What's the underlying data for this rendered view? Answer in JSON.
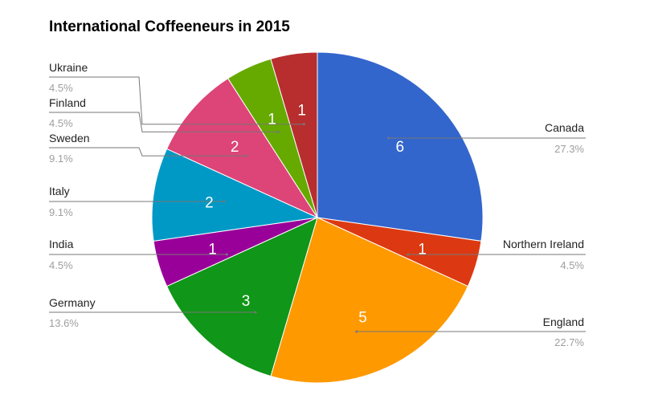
{
  "chart_data": {
    "type": "pie",
    "title": "International Coffeeneurs in 2015",
    "slices": [
      {
        "label": "Canada",
        "value": 6,
        "percent": "27.3%",
        "color": "#3366cc"
      },
      {
        "label": "Northern Ireland",
        "value": 1,
        "percent": "4.5%",
        "color": "#dc3912"
      },
      {
        "label": "England",
        "value": 5,
        "percent": "22.7%",
        "color": "#ff9900"
      },
      {
        "label": "Germany",
        "value": 3,
        "percent": "13.6%",
        "color": "#109618"
      },
      {
        "label": "India",
        "value": 1,
        "percent": "4.5%",
        "color": "#990099"
      },
      {
        "label": "Italy",
        "value": 2,
        "percent": "9.1%",
        "color": "#0099c6"
      },
      {
        "label": "Sweden",
        "value": 2,
        "percent": "9.1%",
        "color": "#dd4477"
      },
      {
        "label": "Finland",
        "value": 1,
        "percent": "4.5%",
        "color": "#66aa00"
      },
      {
        "label": "Ukraine",
        "value": 1,
        "percent": "4.5%",
        "color": "#b82e2e"
      }
    ]
  }
}
